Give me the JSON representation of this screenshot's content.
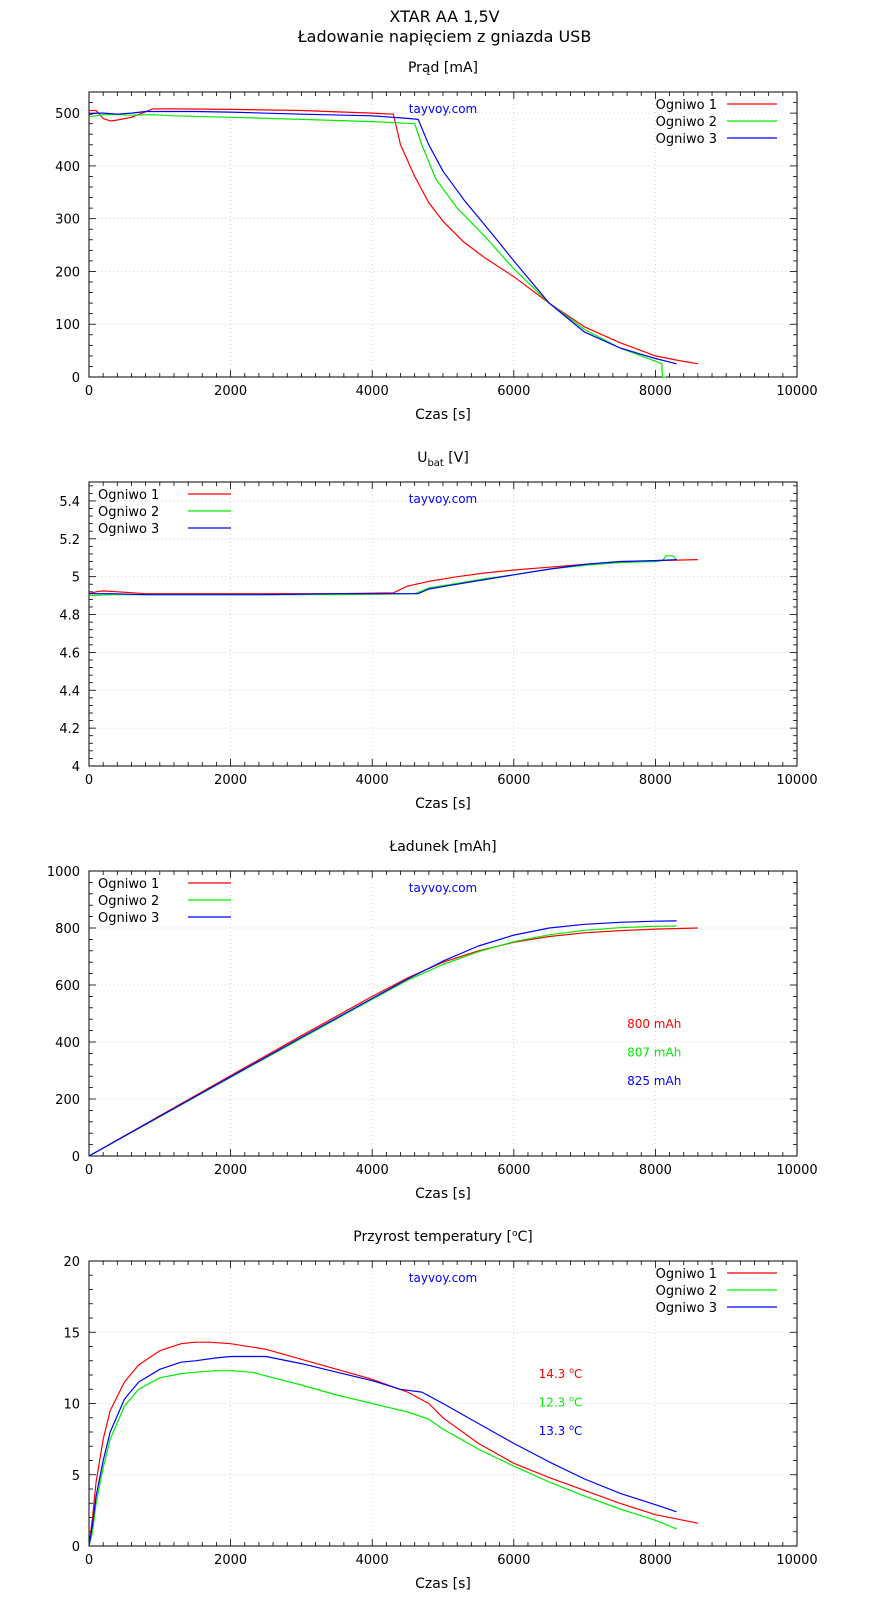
{
  "figure": {
    "title_line1": "XTAR AA 1,5V",
    "title_line2": "Ładowanie napięciem z gniazda USB"
  },
  "series_colors": [
    "#ff0000",
    "#00ee00",
    "#0000ff"
  ],
  "chart_data": [
    {
      "type": "line",
      "title": "Prąd [mA]",
      "xlabel": "Czas [s]",
      "ylabel": "",
      "xlim": [
        0,
        10000
      ],
      "ylim": [
        0,
        540
      ],
      "xticks": [
        0,
        2000,
        4000,
        6000,
        8000,
        10000
      ],
      "yticks": [
        0,
        100,
        200,
        300,
        400,
        500
      ],
      "ytick_labels": [
        "0",
        "100",
        "200",
        "300",
        "400",
        "500"
      ],
      "legend_position": "top-right",
      "watermark": "tayvoy.com",
      "grid": true,
      "series": [
        {
          "name": "Ogniwo 1",
          "x": [
            0,
            100,
            200,
            300,
            400,
            600,
            900,
            1200,
            2000,
            3000,
            4000,
            4300,
            4400,
            4600,
            4800,
            5000,
            5300,
            5600,
            6000,
            6500,
            7000,
            7500,
            8000,
            8300,
            8600
          ],
          "y": [
            505,
            505,
            490,
            485,
            487,
            492,
            508,
            508,
            507,
            505,
            500,
            498,
            440,
            380,
            330,
            295,
            255,
            225,
            190,
            140,
            95,
            65,
            40,
            32,
            25
          ]
        },
        {
          "name": "Ogniwo 2",
          "x": [
            0,
            200,
            400,
            600,
            900,
            1200,
            2000,
            3000,
            4000,
            4600,
            4700,
            4900,
            5200,
            5600,
            6000,
            6500,
            7000,
            7500,
            8000,
            8090,
            8100,
            8150
          ],
          "y": [
            493,
            497,
            497,
            496,
            497,
            495,
            492,
            488,
            484,
            480,
            440,
            375,
            320,
            265,
            205,
            140,
            90,
            55,
            30,
            25,
            0,
            0
          ]
        },
        {
          "name": "Ogniwo 3",
          "x": [
            0,
            100,
            200,
            400,
            600,
            800,
            1000,
            1500,
            2000,
            3000,
            4000,
            4500,
            4650,
            4800,
            5000,
            5300,
            5700,
            6000,
            6500,
            7000,
            7500,
            8000,
            8300
          ],
          "y": [
            497,
            500,
            500,
            498,
            500,
            503,
            503,
            503,
            502,
            498,
            495,
            490,
            488,
            440,
            390,
            335,
            270,
            220,
            140,
            85,
            55,
            35,
            25
          ]
        }
      ]
    },
    {
      "type": "line",
      "title": "U",
      "title_subscript": "bat",
      "title_suffix": " [V]",
      "xlabel": "Czas [s]",
      "ylabel": "",
      "xlim": [
        0,
        10000
      ],
      "ylim": [
        4,
        5.5
      ],
      "xticks": [
        0,
        2000,
        4000,
        6000,
        8000,
        10000
      ],
      "yticks": [
        4,
        4.2,
        4.4,
        4.6,
        4.8,
        5,
        5.2,
        5.4
      ],
      "ytick_labels": [
        "4",
        "4.2",
        "4.4",
        "4.6",
        "4.8",
        "5",
        "5.2",
        "5.4"
      ],
      "legend_position": "top-left",
      "watermark": "tayvoy.com",
      "grid": true,
      "series": [
        {
          "name": "Ogniwo 1",
          "x": [
            0,
            100,
            200,
            400,
            800,
            1500,
            2500,
            3500,
            4300,
            4500,
            4800,
            5200,
            5600,
            6000,
            6500,
            7000,
            7500,
            8000,
            8600
          ],
          "y": [
            4.91,
            4.92,
            4.925,
            4.92,
            4.91,
            4.91,
            4.91,
            4.91,
            4.915,
            4.95,
            4.975,
            5.0,
            5.02,
            5.035,
            5.05,
            5.065,
            5.075,
            5.085,
            5.09
          ]
        },
        {
          "name": "Ogniwo 2",
          "x": [
            0,
            300,
            800,
            1500,
            2500,
            3500,
            4600,
            4800,
            5200,
            5600,
            6000,
            6500,
            7000,
            7500,
            8000,
            8100,
            8150,
            8250,
            8300
          ],
          "y": [
            4.9,
            4.905,
            4.905,
            4.905,
            4.905,
            4.905,
            4.91,
            4.94,
            4.965,
            4.99,
            5.01,
            5.04,
            5.06,
            5.075,
            5.08,
            5.085,
            5.11,
            5.11,
            5.09
          ]
        },
        {
          "name": "Ogniwo 3",
          "x": [
            0,
            300,
            800,
            1500,
            2500,
            3500,
            4650,
            4800,
            5200,
            5600,
            6000,
            6500,
            7000,
            7500,
            8000,
            8300
          ],
          "y": [
            4.91,
            4.91,
            4.905,
            4.905,
            4.905,
            4.91,
            4.91,
            4.935,
            4.96,
            4.985,
            5.01,
            5.04,
            5.065,
            5.08,
            5.085,
            5.09
          ]
        }
      ]
    },
    {
      "type": "line",
      "title": "Ładunek [mAh]",
      "xlabel": "Czas [s]",
      "ylabel": "",
      "xlim": [
        0,
        10000
      ],
      "ylim": [
        0,
        1000
      ],
      "xticks": [
        0,
        2000,
        4000,
        6000,
        8000,
        10000
      ],
      "yticks": [
        0,
        200,
        400,
        600,
        800,
        1000
      ],
      "ytick_labels": [
        "0",
        "200",
        "400",
        "600",
        "800",
        "1000"
      ],
      "legend_position": "top-left",
      "watermark": "tayvoy.com",
      "grid": true,
      "annotations": [
        {
          "text": "800 mAh",
          "x": 7600,
          "y": 450,
          "series": 0
        },
        {
          "text": "807 mAh",
          "x": 7600,
          "y": 350,
          "series": 1
        },
        {
          "text": "825 mAh",
          "x": 7600,
          "y": 250,
          "series": 2
        }
      ],
      "series": [
        {
          "name": "Ogniwo 1",
          "x": [
            0,
            1000,
            2000,
            3000,
            4000,
            4500,
            5000,
            5500,
            6000,
            6500,
            7000,
            7500,
            8000,
            8600
          ],
          "y": [
            0,
            141,
            282,
            422,
            560,
            625,
            680,
            720,
            750,
            770,
            783,
            791,
            796,
            800
          ]
        },
        {
          "name": "Ogniwo 2",
          "x": [
            0,
            1000,
            2000,
            3000,
            4000,
            4500,
            5000,
            5500,
            6000,
            6500,
            7000,
            7500,
            8000,
            8300
          ],
          "y": [
            0,
            138,
            276,
            413,
            550,
            617,
            672,
            717,
            752,
            776,
            792,
            801,
            806,
            807
          ]
        },
        {
          "name": "Ogniwo 3",
          "x": [
            0,
            1000,
            2000,
            3000,
            4000,
            4500,
            5000,
            5500,
            6000,
            6500,
            7000,
            7500,
            8000,
            8300
          ],
          "y": [
            0,
            139,
            278,
            416,
            553,
            621,
            684,
            737,
            775,
            800,
            813,
            820,
            824,
            825
          ]
        }
      ]
    },
    {
      "type": "line",
      "title": "Przyrost temperatury [",
      "title_superscript": "o",
      "title_suffix": "C]",
      "xlabel": "Czas [s]",
      "ylabel": "",
      "xlim": [
        0,
        10000
      ],
      "ylim": [
        0,
        20
      ],
      "xticks": [
        0,
        2000,
        4000,
        6000,
        8000,
        10000
      ],
      "yticks": [
        0,
        5,
        10,
        15,
        20
      ],
      "ytick_labels": [
        "0",
        "5",
        "10",
        "15",
        "20"
      ],
      "legend_position": "top-right",
      "watermark": "tayvoy.com",
      "grid": true,
      "annotations": [
        {
          "text": "14.3 ",
          "sup": "o",
          "tail": "C",
          "x": 6350,
          "y": 11.8,
          "series": 0
        },
        {
          "text": "12.3 ",
          "sup": "o",
          "tail": "C",
          "x": 6350,
          "y": 9.8,
          "series": 1
        },
        {
          "text": "13.3 ",
          "sup": "o",
          "tail": "C",
          "x": 6350,
          "y": 7.8,
          "series": 2
        }
      ],
      "series": [
        {
          "name": "Ogniwo 1",
          "x": [
            0,
            50,
            100,
            200,
            300,
            500,
            700,
            1000,
            1300,
            1500,
            1700,
            2000,
            2500,
            3000,
            3500,
            4000,
            4500,
            4800,
            5000,
            5500,
            6000,
            6500,
            7000,
            7500,
            8000,
            8600
          ],
          "y": [
            0,
            2,
            4.5,
            7.5,
            9.5,
            11.5,
            12.7,
            13.7,
            14.2,
            14.3,
            14.3,
            14.2,
            13.8,
            13.1,
            12.4,
            11.7,
            10.8,
            10.0,
            9.0,
            7.2,
            5.8,
            4.8,
            3.9,
            3.0,
            2.2,
            1.6
          ]
        },
        {
          "name": "Ogniwo 2",
          "x": [
            0,
            50,
            100,
            200,
            300,
            500,
            700,
            1000,
            1300,
            1500,
            1800,
            2000,
            2300,
            2600,
            3000,
            3500,
            4000,
            4500,
            4800,
            5000,
            5500,
            6000,
            6500,
            7000,
            7500,
            8000,
            8300
          ],
          "y": [
            0,
            1,
            3,
            5.5,
            7.5,
            9.8,
            11.0,
            11.8,
            12.1,
            12.2,
            12.3,
            12.3,
            12.2,
            11.8,
            11.3,
            10.6,
            10.0,
            9.4,
            8.9,
            8.2,
            6.8,
            5.6,
            4.5,
            3.5,
            2.6,
            1.8,
            1.2
          ]
        },
        {
          "name": "Ogniwo 3",
          "x": [
            0,
            50,
            100,
            200,
            300,
            500,
            700,
            1000,
            1300,
            1500,
            1800,
            2000,
            2500,
            3000,
            3500,
            4000,
            4400,
            4700,
            5000,
            5500,
            6000,
            6500,
            7000,
            7500,
            8000,
            8300
          ],
          "y": [
            0,
            1.5,
            3.5,
            6.0,
            8.0,
            10.3,
            11.5,
            12.4,
            12.9,
            13.0,
            13.2,
            13.3,
            13.3,
            12.8,
            12.2,
            11.6,
            11.0,
            10.8,
            10.0,
            8.6,
            7.2,
            5.9,
            4.7,
            3.7,
            2.9,
            2.4
          ]
        }
      ]
    }
  ]
}
